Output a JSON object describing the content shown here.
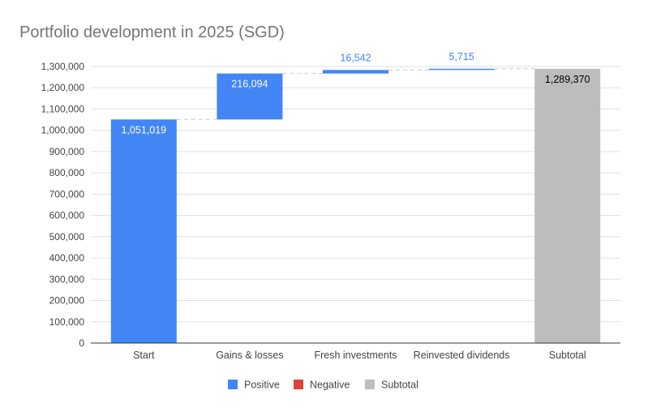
{
  "chart_data": {
    "type": "waterfall",
    "title": "Portfolio development in 2025 (SGD)",
    "xlabel": "",
    "ylabel": "",
    "ylim": [
      0,
      1300000
    ],
    "yticks": [
      0,
      100000,
      200000,
      300000,
      400000,
      500000,
      600000,
      700000,
      800000,
      900000,
      1000000,
      1100000,
      1200000,
      1300000
    ],
    "ytick_labels": [
      "0",
      "100,000",
      "200,000",
      "300,000",
      "400,000",
      "500,000",
      "600,000",
      "700,000",
      "800,000",
      "900,000",
      "1,000,000",
      "1,100,000",
      "1,200,000",
      "1,300,000"
    ],
    "grid": true,
    "legend_position": "bottom",
    "categories": [
      "Start",
      "Gains & losses",
      "Fresh investments",
      "Reinvested dividends",
      "Subtotal"
    ],
    "bars": [
      {
        "category": "Start",
        "kind": "positive",
        "start": 0,
        "end": 1051019,
        "label": "1,051,019"
      },
      {
        "category": "Gains & losses",
        "kind": "positive",
        "start": 1051019,
        "end": 1267113,
        "label": "216,094"
      },
      {
        "category": "Fresh investments",
        "kind": "positive",
        "start": 1267113,
        "end": 1283655,
        "label": "16,542"
      },
      {
        "category": "Reinvested dividends",
        "kind": "positive",
        "start": 1283655,
        "end": 1289370,
        "label": "5,715"
      },
      {
        "category": "Subtotal",
        "kind": "subtotal",
        "start": 0,
        "end": 1289370,
        "label": "1,289,370"
      }
    ],
    "legend": [
      {
        "name": "Positive",
        "kind": "positive"
      },
      {
        "name": "Negative",
        "kind": "negative"
      },
      {
        "name": "Subtotal",
        "kind": "subtotal"
      }
    ],
    "colors": {
      "positive": "#4285f4",
      "negative": "#db4437",
      "subtotal": "#bdbdbd",
      "grid": "#e0e0e0",
      "axis": "#333333",
      "connector": "#cccccc",
      "label_outside": "#4285f4",
      "label_inside_positive": "#ffffff",
      "label_inside_subtotal": "#000000"
    }
  }
}
